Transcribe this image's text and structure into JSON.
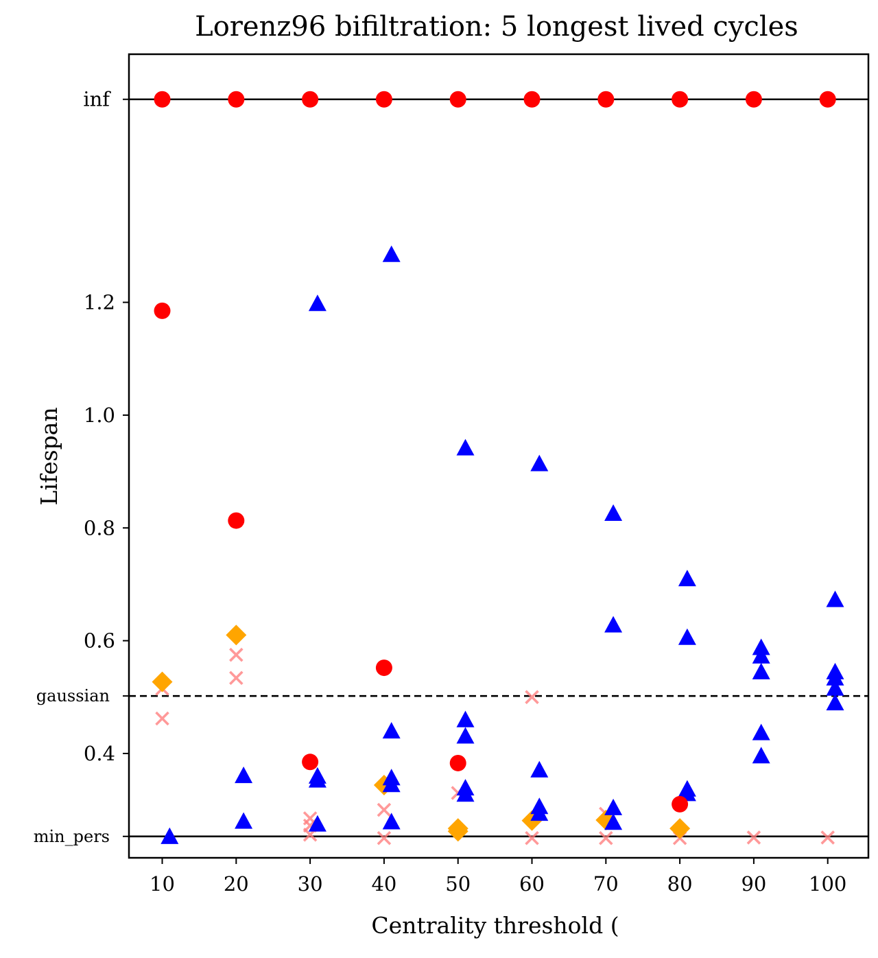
{
  "chart_data": {
    "type": "scatter",
    "title": "Lorenz96 bifiltration: 5 longest lived cycles",
    "xlabel": "Centrality threshold (",
    "ylabel": "Lifespan",
    "xlim": [
      5.5,
      105.5
    ],
    "ylim": [
      0.215,
      1.64
    ],
    "x_ticks": [
      10,
      20,
      30,
      40,
      50,
      60,
      70,
      80,
      90,
      100
    ],
    "y_ticks": [
      {
        "value": 0.4,
        "label": "0.4"
      },
      {
        "value": 0.6,
        "label": "0.6"
      },
      {
        "value": 0.8,
        "label": "0.8"
      },
      {
        "value": 1.0,
        "label": "1.0"
      },
      {
        "value": 1.2,
        "label": "1.2"
      }
    ],
    "reference_lines": [
      {
        "value": 1.56,
        "label": "inf",
        "style": "solid"
      },
      {
        "value": 0.502,
        "label": "gaussian",
        "style": "dashed"
      },
      {
        "value": 0.253,
        "label": "min_pers",
        "style": "solid"
      }
    ],
    "series": [
      {
        "name": "red circles",
        "marker": "circle",
        "color": "#ff0000",
        "points": [
          [
            10,
            1.56
          ],
          [
            20,
            1.56
          ],
          [
            30,
            1.56
          ],
          [
            40,
            1.56
          ],
          [
            50,
            1.56
          ],
          [
            60,
            1.56
          ],
          [
            70,
            1.56
          ],
          [
            80,
            1.56
          ],
          [
            90,
            1.56
          ],
          [
            100,
            1.56
          ],
          [
            10,
            1.185
          ],
          [
            20,
            0.813
          ],
          [
            40,
            0.552
          ],
          [
            30,
            0.385
          ],
          [
            50,
            0.383
          ],
          [
            80,
            0.31
          ]
        ]
      },
      {
        "name": "blue triangles",
        "marker": "triangle",
        "color": "#0000ff",
        "points": [
          [
            11,
            0.253
          ],
          [
            21,
            0.361
          ],
          [
            21,
            0.28
          ],
          [
            31,
            1.198
          ],
          [
            31,
            0.36
          ],
          [
            31,
            0.353
          ],
          [
            31,
            0.275
          ],
          [
            41,
            1.285
          ],
          [
            41,
            0.44
          ],
          [
            41,
            0.357
          ],
          [
            41,
            0.345
          ],
          [
            41,
            0.279
          ],
          [
            51,
            0.942
          ],
          [
            51,
            0.46
          ],
          [
            51,
            0.431
          ],
          [
            51,
            0.339
          ],
          [
            51,
            0.328
          ],
          [
            61,
            0.914
          ],
          [
            61,
            0.371
          ],
          [
            61,
            0.306
          ],
          [
            61,
            0.294
          ],
          [
            71,
            0.826
          ],
          [
            71,
            0.628
          ],
          [
            71,
            0.304
          ],
          [
            71,
            0.278
          ],
          [
            81,
            0.71
          ],
          [
            81,
            0.606
          ],
          [
            81,
            0.337
          ],
          [
            81,
            0.329
          ],
          [
            91,
            0.588
          ],
          [
            91,
            0.573
          ],
          [
            91,
            0.545
          ],
          [
            91,
            0.437
          ],
          [
            91,
            0.396
          ],
          [
            101,
            0.673
          ],
          [
            101,
            0.545
          ],
          [
            101,
            0.534
          ],
          [
            101,
            0.516
          ],
          [
            101,
            0.49
          ]
        ]
      },
      {
        "name": "orange diamonds",
        "marker": "diamond",
        "color": "#ffa500",
        "points": [
          [
            10,
            0.527
          ],
          [
            20,
            0.61
          ],
          [
            40,
            0.344
          ],
          [
            50,
            0.267
          ],
          [
            50,
            0.262
          ],
          [
            60,
            0.281
          ],
          [
            70,
            0.282
          ],
          [
            80,
            0.267
          ]
        ]
      },
      {
        "name": "pink crosses",
        "marker": "x",
        "color": "#ff8080",
        "opacity": 0.8,
        "points": [
          [
            10,
            0.515
          ],
          [
            10,
            0.462
          ],
          [
            20,
            0.575
          ],
          [
            20,
            0.534
          ],
          [
            30,
            0.285
          ],
          [
            30,
            0.272
          ],
          [
            30,
            0.256
          ],
          [
            40,
            0.3
          ],
          [
            40,
            0.25
          ],
          [
            50,
            0.33
          ],
          [
            60,
            0.5
          ],
          [
            60,
            0.25
          ],
          [
            70,
            0.293
          ],
          [
            70,
            0.25
          ],
          [
            80,
            0.25
          ],
          [
            90,
            0.251
          ],
          [
            100,
            0.251
          ]
        ]
      }
    ]
  }
}
